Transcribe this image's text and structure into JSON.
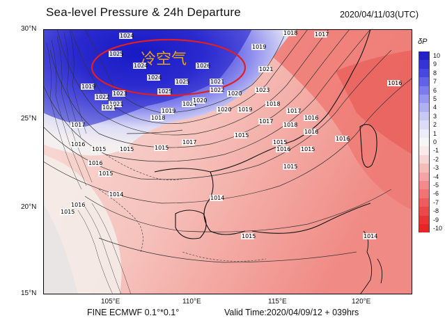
{
  "title": "Sea-level Pressure & 24h Departure",
  "timestamp": "2020/04/11/03(UTC)",
  "footer": {
    "model": "FINE ECMWF 0.1°*0.1°",
    "valid": "Valid Time:2020/04/09/12 + 039hrs"
  },
  "annotation": {
    "text": "冷空气",
    "color": "#e8a21a",
    "ellipse_color": "#e02020"
  },
  "lat_labels": [
    "30°N",
    "25°N",
    "20°N",
    "15°N"
  ],
  "lon_labels": [
    "105°E",
    "110°E",
    "115°E",
    "120°E"
  ],
  "legend": {
    "title": "δP",
    "values": [
      "10",
      "9",
      "8",
      "7",
      "6",
      "5",
      "4",
      "3",
      "2",
      "1",
      "0",
      "-1",
      "-2",
      "-3",
      "-4",
      "-5",
      "-6",
      "-7",
      "-8",
      "-9",
      "-10"
    ],
    "colors": [
      "#2222c8",
      "#3333d6",
      "#4848e0",
      "#6262e6",
      "#7c7cec",
      "#9898f0",
      "#b0b0f4",
      "#c8c8f6",
      "#dcdcf8",
      "#ececfa",
      "#f6f6f6",
      "#fbeaea",
      "#f8d4d4",
      "#f6bcbc",
      "#f4a4a4",
      "#f28c8c",
      "#f07474",
      "#ee5c5c",
      "#ec4848",
      "#ea3434",
      "#e82424"
    ]
  },
  "isobar_labels": [
    {
      "text": "1024"
    },
    {
      "text": "1025"
    },
    {
      "text": "1024"
    },
    {
      "text": "1024"
    },
    {
      "text": "1025"
    },
    {
      "text": "1026"
    },
    {
      "text": "1025"
    },
    {
      "text": "1024"
    },
    {
      "text": "1020"
    },
    {
      "text": "1018"
    },
    {
      "text": "1017"
    },
    {
      "text": "1019"
    },
    {
      "text": "1021"
    },
    {
      "text": "1023"
    },
    {
      "text": "1022"
    },
    {
      "text": "1021"
    },
    {
      "text": "1019"
    },
    {
      "text": "1018"
    },
    {
      "text": "1019"
    },
    {
      "text": "1020"
    },
    {
      "text": "1022"
    },
    {
      "text": "1021"
    },
    {
      "text": "1023"
    },
    {
      "text": "1020"
    },
    {
      "text": "1019"
    },
    {
      "text": "1021"
    },
    {
      "text": "1018"
    },
    {
      "text": "1017"
    },
    {
      "text": "1016"
    },
    {
      "text": "1016"
    },
    {
      "text": "1017"
    },
    {
      "text": "1016"
    },
    {
      "text": "1015"
    },
    {
      "text": "1015"
    },
    {
      "text": "1015"
    },
    {
      "text": "1016"
    },
    {
      "text": "1015"
    },
    {
      "text": "1014"
    },
    {
      "text": "1016"
    },
    {
      "text": "1015"
    },
    {
      "text": "1015"
    },
    {
      "text": "1016"
    },
    {
      "text": "1014"
    },
    {
      "text": "1015"
    },
    {
      "text": "1016"
    },
    {
      "text": "1016"
    },
    {
      "text": "1015"
    },
    {
      "text": "1015"
    },
    {
      "text": "1014"
    },
    {
      "text": "1015"
    },
    {
      "text": "1017"
    },
    {
      "text": "1018"
    },
    {
      "text": "1017"
    }
  ]
}
